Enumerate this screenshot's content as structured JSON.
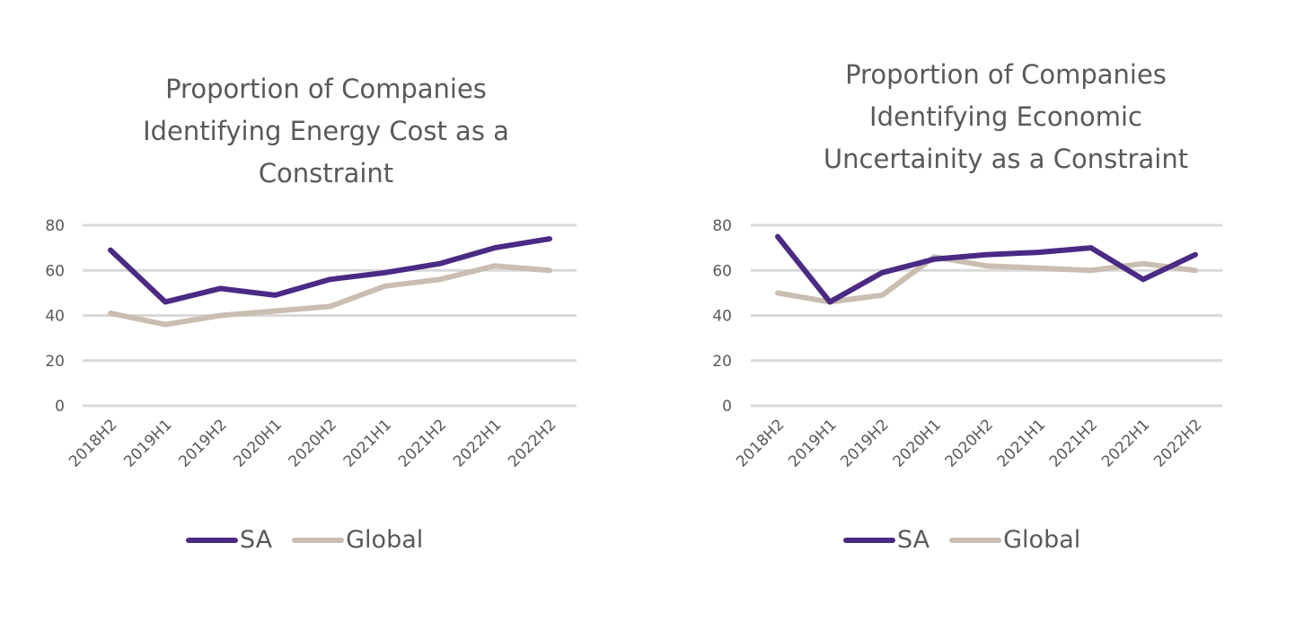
{
  "colors": {
    "SA": "#4b2a84",
    "Global": "#c9beb0",
    "grid": "#d9d9d9",
    "text": "#595959"
  },
  "chart_data": [
    {
      "type": "line",
      "title_lines": [
        "Proportion of Companies",
        "Identifying Energy Cost as a",
        "Constraint"
      ],
      "title": "Proportion of Companies Identifying Energy Cost as a Constraint",
      "xlabel": "",
      "ylabel": "",
      "categories": [
        "2018H2",
        "2019H1",
        "2019H2",
        "2020H1",
        "2020H2",
        "2021H1",
        "2021H2",
        "2022H1",
        "2022H2"
      ],
      "yticks": [
        "0",
        "20",
        "40",
        "60",
        "80"
      ],
      "ylim": [
        0,
        80
      ],
      "grid": true,
      "legend_position": "bottom",
      "series": [
        {
          "name": "SA",
          "values": [
            69,
            46,
            52,
            49,
            56,
            59,
            63,
            70,
            74
          ]
        },
        {
          "name": "Global",
          "values": [
            41,
            36,
            40,
            42,
            44,
            53,
            56,
            62,
            60
          ]
        }
      ]
    },
    {
      "type": "line",
      "title_lines": [
        "Proportion of Companies",
        "Identifying Economic",
        "Uncertainity as a Constraint"
      ],
      "title": "Proportion of Companies Identifying Economic Uncertainity as a Constraint",
      "xlabel": "",
      "ylabel": "",
      "categories": [
        "2018H2",
        "2019H1",
        "2019H2",
        "2020H1",
        "2020H2",
        "2021H1",
        "2021H2",
        "2022H1",
        "2022H2"
      ],
      "yticks": [
        "0",
        "20",
        "40",
        "60",
        "80"
      ],
      "ylim": [
        0,
        80
      ],
      "grid": true,
      "legend_position": "bottom",
      "series": [
        {
          "name": "SA",
          "values": [
            75,
            46,
            59,
            65,
            67,
            68,
            70,
            56,
            67
          ]
        },
        {
          "name": "Global",
          "values": [
            50,
            46,
            49,
            66,
            62,
            61,
            60,
            63,
            60
          ]
        }
      ]
    }
  ]
}
